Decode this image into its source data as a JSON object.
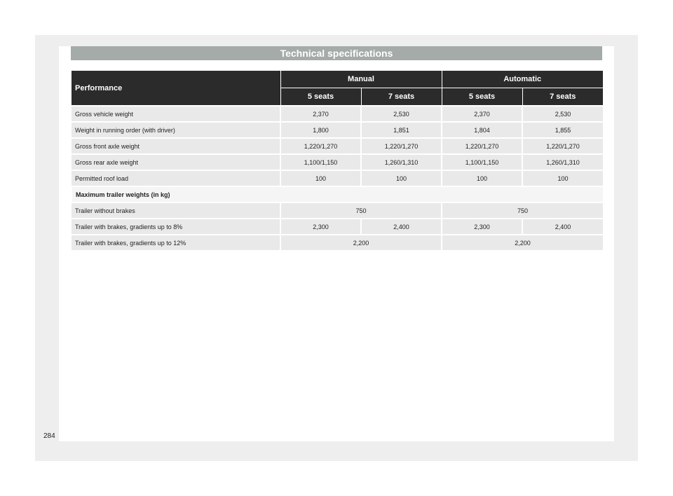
{
  "page": {
    "title": "Technical specifications",
    "page_number": "284"
  },
  "table": {
    "corner_header": "Performance",
    "group_headers": [
      "Manual",
      "Automatic"
    ],
    "sub_headers": [
      "5 seats",
      "7 seats",
      "5 seats",
      "7 seats"
    ],
    "rows": [
      {
        "label": "Gross vehicle weight",
        "values": [
          "2,370",
          "2,530",
          "2,370",
          "2,530"
        ]
      },
      {
        "label": "Weight in running order (with driver)",
        "values": [
          "1,800",
          "1,851",
          "1,804",
          "1,855"
        ]
      },
      {
        "label": "Gross front axle weight",
        "values": [
          "1,220/1,270",
          "1,220/1,270",
          "1,220/1,270",
          "1,220/1,270"
        ]
      },
      {
        "label": "Gross rear axle weight",
        "values": [
          "1,100/1,150",
          "1,260/1,310",
          "1,100/1,150",
          "1,260/1,310"
        ]
      },
      {
        "label": "Permitted roof load",
        "values": [
          "100",
          "100",
          "100",
          "100"
        ]
      }
    ],
    "section_label": "Maximum trailer weights (in kg)",
    "trailer_rows": [
      {
        "label": "Trailer without brakes",
        "values": [
          "750",
          "750"
        ]
      },
      {
        "label": "Trailer with brakes, gradients up to 8%",
        "values": [
          "2,300",
          "2,400",
          "2,300",
          "2,400"
        ]
      },
      {
        "label": "Trailer with brakes, gradients up to 12%",
        "values": [
          "2,200",
          "2,200"
        ]
      }
    ]
  },
  "colors": {
    "title_bar": "#a4aba9",
    "header_bg": "#2b2b2b",
    "row_bg": "#e9e9e9",
    "frame_bg": "#eeeeee"
  }
}
